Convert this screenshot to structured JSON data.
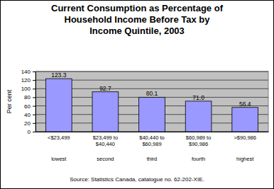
{
  "chart_data": {
    "type": "bar",
    "title": "Current Consumption as Percentage of Household Income Before Tax by Income Quintile, 2003",
    "y_label": "Per cent",
    "categories": [
      [
        "<$23,499",
        "lowest"
      ],
      [
        "$23,499 to $40,440",
        "second"
      ],
      [
        "$40,440 to $60,989",
        "third"
      ],
      [
        "$60,989 to $90,986",
        "fourth"
      ],
      [
        ">$90,986",
        "highest"
      ]
    ],
    "values": [
      123.3,
      92.7,
      80.1,
      71.0,
      56.4
    ],
    "value_labels": [
      "123.3",
      "92.7",
      "80.1",
      "71.0",
      "56.4"
    ],
    "color": "#9999ff",
    "ylim": [
      0,
      140
    ],
    "yticks": [
      0,
      20,
      40,
      60,
      80,
      100,
      120,
      140
    ],
    "grid": true,
    "data_labels": true,
    "source": "Source: Statistics Canada, catalogue no. 62-202-XIE."
  }
}
